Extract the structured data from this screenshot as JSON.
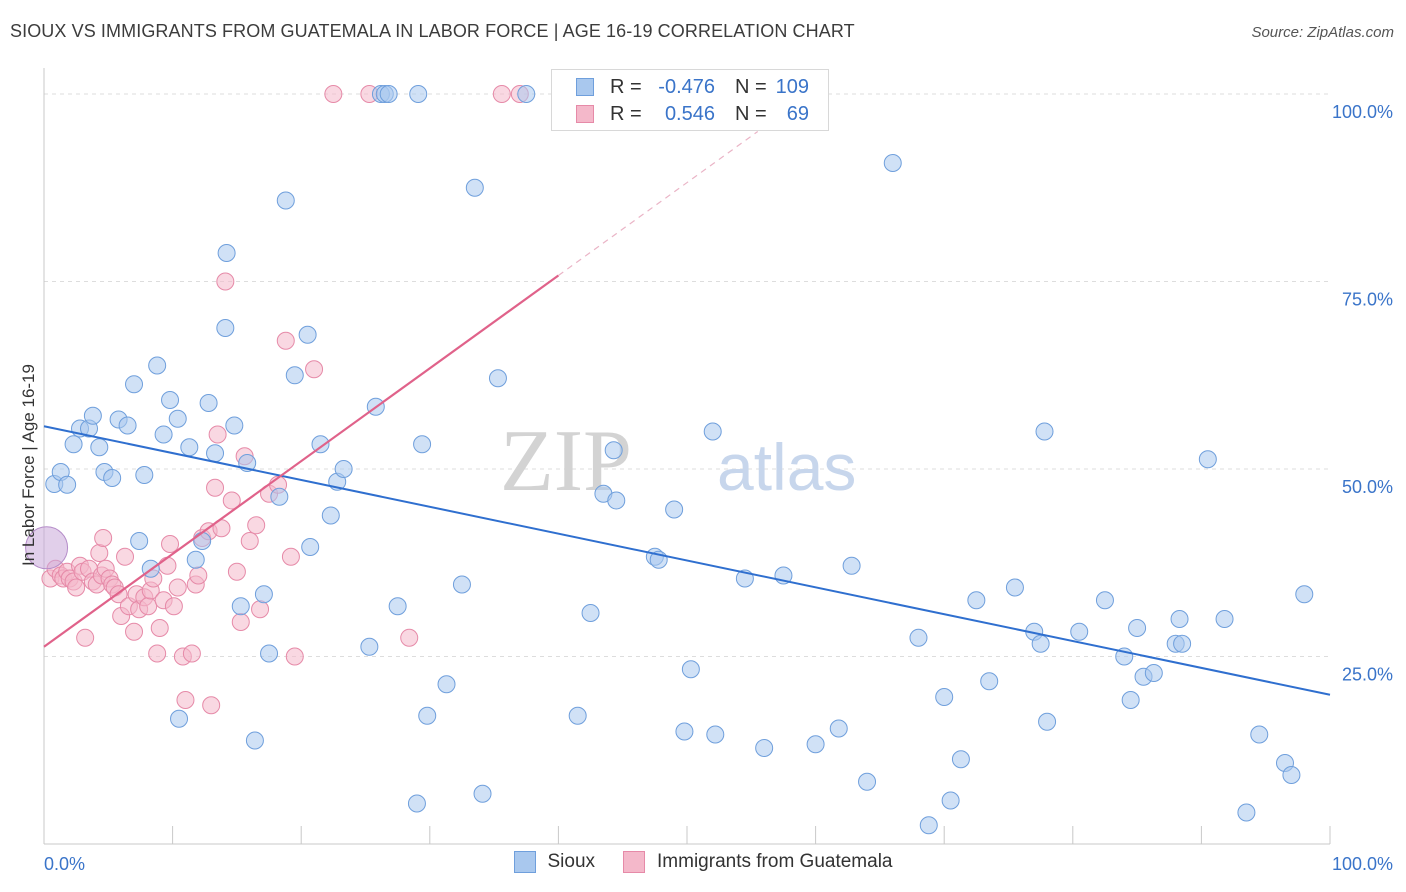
{
  "header": {
    "title": "SIOUX VS IMMIGRANTS FROM GUATEMALA IN LABOR FORCE | AGE 16-19 CORRELATION CHART",
    "source": "Source: ZipAtlas.com"
  },
  "watermark": {
    "zip": "ZIP",
    "atlas": "atlas"
  },
  "legend": {
    "rows": [
      {
        "r_label": "R =",
        "r_value": "-0.476",
        "n_label": "N =",
        "n_value": "109"
      },
      {
        "r_label": "R =",
        "r_value": "0.546",
        "n_label": "N =",
        "n_value": "69"
      }
    ]
  },
  "bottom_legend": {
    "sioux": "Sioux",
    "guatemala": "Immigrants from Guatemala"
  },
  "axes": {
    "ylabel": "In Labor Force | Age 16-19",
    "x_min_label": "0.0%",
    "x_max_label": "100.0%",
    "y_ticks": [
      "100.0%",
      "75.0%",
      "50.0%",
      "25.0%"
    ]
  },
  "colors": {
    "sioux_fill": "#a9c8ee",
    "sioux_stroke": "#6f9fdc",
    "sioux_line": "#2f6fcf",
    "guat_fill": "#f4b8ca",
    "guat_stroke": "#e68aa8",
    "guat_line": "#e0628a",
    "tick_label": "#3a74c9",
    "grid": "#dddddd"
  },
  "chart_data": {
    "type": "scatter",
    "xlabel": "",
    "ylabel": "In Labor Force | Age 16-19",
    "xlim": [
      0,
      100
    ],
    "ylim": [
      0,
      102
    ],
    "grid": true,
    "legend_placement": "top-center",
    "series": [
      {
        "name": "Sioux",
        "trend": {
          "x": [
            0,
            100
          ],
          "y": [
            55.7,
            19.9
          ],
          "r": -0.476,
          "n": 109
        },
        "points": [
          [
            0.8,
            48
          ],
          [
            1.3,
            49.6
          ],
          [
            1.8,
            47.9
          ],
          [
            2.3,
            53.3
          ],
          [
            2.8,
            55.4
          ],
          [
            3.5,
            55.4
          ],
          [
            3.8,
            57.1
          ],
          [
            4.3,
            52.9
          ],
          [
            4.7,
            49.6
          ],
          [
            5.3,
            48.8
          ],
          [
            5.8,
            56.6
          ],
          [
            6.5,
            55.8
          ],
          [
            7.0,
            61.3
          ],
          [
            7.4,
            40.4
          ],
          [
            7.8,
            49.2
          ],
          [
            8.3,
            36.7
          ],
          [
            8.8,
            63.8
          ],
          [
            9.3,
            54.6
          ],
          [
            9.8,
            59.2
          ],
          [
            10.4,
            56.7
          ],
          [
            10.5,
            16.7
          ],
          [
            11.3,
            52.9
          ],
          [
            11.8,
            37.9
          ],
          [
            12.3,
            40.4
          ],
          [
            12.8,
            58.8
          ],
          [
            13.3,
            52.1
          ],
          [
            14.1,
            68.8
          ],
          [
            14.2,
            78.8
          ],
          [
            14.8,
            55.8
          ],
          [
            15.3,
            31.7
          ],
          [
            15.8,
            50.8
          ],
          [
            16.4,
            13.8
          ],
          [
            17.1,
            33.3
          ],
          [
            17.5,
            25.4
          ],
          [
            18.3,
            46.3
          ],
          [
            18.8,
            85.8
          ],
          [
            19.5,
            62.5
          ],
          [
            20.5,
            67.9
          ],
          [
            20.7,
            39.6
          ],
          [
            21.5,
            53.3
          ],
          [
            22.3,
            43.8
          ],
          [
            22.8,
            48.3
          ],
          [
            23.3,
            50
          ],
          [
            25.3,
            26.3
          ],
          [
            25.8,
            58.3
          ],
          [
            26.2,
            100
          ],
          [
            26.5,
            100
          ],
          [
            26.8,
            100
          ],
          [
            27.5,
            31.7
          ],
          [
            29.1,
            100
          ],
          [
            29.4,
            53.3
          ],
          [
            29.8,
            17.1
          ],
          [
            29,
            5.4
          ],
          [
            31.3,
            21.3
          ],
          [
            32.5,
            34.6
          ],
          [
            33.5,
            87.5
          ],
          [
            34.1,
            6.7
          ],
          [
            35.3,
            62.1
          ],
          [
            37.5,
            100
          ],
          [
            41.5,
            17.1
          ],
          [
            41.8,
            100
          ],
          [
            42.5,
            30.8
          ],
          [
            43.5,
            46.7
          ],
          [
            44.3,
            52.5
          ],
          [
            44.5,
            45.8
          ],
          [
            45.8,
            100
          ],
          [
            47.5,
            38.3
          ],
          [
            47.8,
            37.9
          ],
          [
            49.0,
            44.6
          ],
          [
            49.8,
            15
          ],
          [
            50.3,
            23.3
          ],
          [
            52.0,
            55
          ],
          [
            52.2,
            14.6
          ],
          [
            54.5,
            35.4
          ],
          [
            56.0,
            12.8
          ],
          [
            57.5,
            35.8
          ],
          [
            60.0,
            13.3
          ],
          [
            61.8,
            15.4
          ],
          [
            62.8,
            37.1
          ],
          [
            64.0,
            8.3
          ],
          [
            66.0,
            90.8
          ],
          [
            68.0,
            27.5
          ],
          [
            68.8,
            2.5
          ],
          [
            70.0,
            19.6
          ],
          [
            70.5,
            5.8
          ],
          [
            71.3,
            11.3
          ],
          [
            72.5,
            32.5
          ],
          [
            73.5,
            21.7
          ],
          [
            75.5,
            34.2
          ],
          [
            77.0,
            28.3
          ],
          [
            77.5,
            26.7
          ],
          [
            77.8,
            55
          ],
          [
            78.0,
            16.3
          ],
          [
            80.5,
            28.3
          ],
          [
            82.5,
            32.5
          ],
          [
            84.0,
            25
          ],
          [
            84.5,
            19.2
          ],
          [
            85.0,
            28.8
          ],
          [
            85.5,
            22.3
          ],
          [
            86.3,
            22.8
          ],
          [
            88.0,
            26.7
          ],
          [
            88.3,
            30
          ],
          [
            88.5,
            26.7
          ],
          [
            90.5,
            51.3
          ],
          [
            91.8,
            30
          ],
          [
            93.5,
            4.2
          ],
          [
            94.5,
            14.6
          ],
          [
            96.5,
            10.8
          ],
          [
            97.0,
            9.2
          ],
          [
            98.0,
            33.3
          ]
        ]
      },
      {
        "name": "Immigrants from Guatemala",
        "trend": {
          "x": [
            0,
            40
          ],
          "y": [
            26.3,
            75.8
          ],
          "dashed_to": {
            "x": 55.5,
            "y": 95
          },
          "r": 0.546,
          "n": 69
        },
        "points": [
          [
            0.5,
            35.4
          ],
          [
            0.9,
            36.7
          ],
          [
            1.3,
            35.8
          ],
          [
            1.5,
            35.4
          ],
          [
            1.8,
            36.3
          ],
          [
            2.0,
            35.4
          ],
          [
            2.3,
            35
          ],
          [
            2.5,
            34.2
          ],
          [
            2.8,
            37.1
          ],
          [
            3.0,
            36.3
          ],
          [
            3.2,
            27.5
          ],
          [
            3.5,
            36.7
          ],
          [
            3.8,
            35
          ],
          [
            4.1,
            34.6
          ],
          [
            4.3,
            38.8
          ],
          [
            4.5,
            35.8
          ],
          [
            4.6,
            40.8
          ],
          [
            4.8,
            36.7
          ],
          [
            5.1,
            35.4
          ],
          [
            5.3,
            34.6
          ],
          [
            5.5,
            34.2
          ],
          [
            5.8,
            33.3
          ],
          [
            6.0,
            30.4
          ],
          [
            6.3,
            38.3
          ],
          [
            6.6,
            31.7
          ],
          [
            7.0,
            28.3
          ],
          [
            7.2,
            33.3
          ],
          [
            7.4,
            31.3
          ],
          [
            7.8,
            32.9
          ],
          [
            8.1,
            31.7
          ],
          [
            8.3,
            33.8
          ],
          [
            8.5,
            35.4
          ],
          [
            8.8,
            25.4
          ],
          [
            9.0,
            28.8
          ],
          [
            9.3,
            32.5
          ],
          [
            9.6,
            37.1
          ],
          [
            9.8,
            40
          ],
          [
            10.1,
            31.7
          ],
          [
            10.4,
            34.2
          ],
          [
            10.8,
            25
          ],
          [
            11.0,
            19.2
          ],
          [
            11.5,
            25.4
          ],
          [
            11.8,
            34.6
          ],
          [
            12.0,
            35.8
          ],
          [
            12.3,
            40.8
          ],
          [
            12.8,
            41.7
          ],
          [
            13.0,
            18.5
          ],
          [
            13.3,
            47.5
          ],
          [
            13.5,
            54.6
          ],
          [
            13.8,
            42.1
          ],
          [
            14.1,
            75
          ],
          [
            14.6,
            45.8
          ],
          [
            15.0,
            36.3
          ],
          [
            15.3,
            29.6
          ],
          [
            15.6,
            51.7
          ],
          [
            16.0,
            40.4
          ],
          [
            16.5,
            42.5
          ],
          [
            16.8,
            31.3
          ],
          [
            17.5,
            46.7
          ],
          [
            18.2,
            47.9
          ],
          [
            18.8,
            67.1
          ],
          [
            19.2,
            38.3
          ],
          [
            19.5,
            25
          ],
          [
            21.0,
            63.3
          ],
          [
            22.5,
            100
          ],
          [
            25.3,
            100
          ],
          [
            28.4,
            27.5
          ],
          [
            35.6,
            100
          ],
          [
            37.0,
            100
          ]
        ]
      }
    ]
  }
}
